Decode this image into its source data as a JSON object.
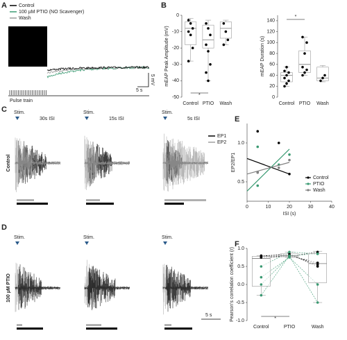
{
  "panel_labels": [
    "A",
    "B",
    "C",
    "D",
    "E",
    "F"
  ],
  "panel_a": {
    "legend": [
      "Control",
      "100 µM PTIO (NO Scavenger)",
      "Wash"
    ],
    "legend_colors": [
      "#000000",
      "#3a9a72",
      "#9a9a9a"
    ],
    "scale_x": "5 s",
    "scale_y": "5 mV",
    "pulse": "Pulse train"
  },
  "traces": {
    "stim": "Stim.",
    "isi": [
      "30s ISI",
      "15s ISI",
      "5s ISI"
    ],
    "legend": [
      "EP1",
      "EP2"
    ],
    "legend_colors": [
      "#000000",
      "#a0a0a0"
    ],
    "row_labels": [
      "Control",
      "100 µM PTIO"
    ],
    "scale": "5 s"
  },
  "chart_data": [
    {
      "type": "box",
      "ylabel": "mEAP Peak Amplitude (mV)",
      "categories": [
        "Control",
        "PTIO",
        "Wash"
      ],
      "ylim": [
        -50,
        0
      ],
      "yticks": [
        0,
        -10,
        -20,
        -30,
        -40,
        -50
      ],
      "point_color": "#000000",
      "boxes": [
        {
          "min": -28,
          "q1": -18,
          "median": -8,
          "q3": -4,
          "max": -2
        },
        {
          "min": -40,
          "q1": -20,
          "median": -15,
          "q3": -6,
          "max": -3
        },
        {
          "min": -18,
          "q1": -14,
          "median": -8,
          "q3": -4,
          "max": -3
        }
      ],
      "points": [
        [
          -3,
          -5,
          -8,
          -10,
          -12,
          -20,
          -28
        ],
        [
          -5,
          -8,
          -12,
          -18,
          -22,
          -30,
          -35,
          -40
        ],
        [
          -5,
          -10,
          -15,
          -18
        ]
      ],
      "significance": {
        "label": "*",
        "between": [
          0,
          1
        ],
        "side": "bottom"
      }
    },
    {
      "type": "box",
      "ylabel": "mEAP Duration (s)",
      "categories": [
        "Control",
        "PTIO",
        "Wash"
      ],
      "ylim": [
        0,
        150
      ],
      "yticks": [
        0,
        20,
        40,
        60,
        80,
        100,
        120,
        140
      ],
      "point_color": "#000000",
      "boxes": [
        {
          "min": 20,
          "q1": 28,
          "median": 40,
          "q3": 45,
          "max": 55
        },
        {
          "min": 40,
          "q1": 45,
          "median": 60,
          "q3": 85,
          "max": 110
        },
        {
          "min": 28,
          "q1": 30,
          "median": 35,
          "q3": 55,
          "max": 58
        }
      ],
      "points": [
        [
          20,
          25,
          30,
          35,
          40,
          45,
          48,
          55
        ],
        [
          40,
          45,
          50,
          55,
          80,
          100,
          110
        ],
        [
          30,
          35,
          40
        ]
      ],
      "significance": {
        "label": "*",
        "between": [
          0,
          1
        ],
        "side": "top"
      }
    },
    {
      "type": "scatter",
      "xlabel": "ISI (s)",
      "ylabel": "EP2/EP1",
      "xlim": [
        0,
        40
      ],
      "xticks": [
        0,
        10,
        20,
        30,
        40
      ],
      "ylim": [
        0.25,
        1.25
      ],
      "yticks": [
        0.5,
        {
          "value": 1,
          "label": "1.0"
        }
      ],
      "legend": "lower right",
      "series": [
        {
          "name": "Control",
          "color": "#000000",
          "x": [
            5,
            5,
            15,
            20
          ],
          "values": [
            1.15,
            0.62,
            1.0,
            0.6
          ],
          "fit": {
            "x": [
              0,
              20
            ],
            "values": [
              0.8,
              0.6
            ]
          }
        },
        {
          "name": "PTIO",
          "color": "#3a9a72",
          "x": [
            5,
            5,
            15,
            20
          ],
          "values": [
            0.95,
            0.45,
            0.72,
            0.85
          ],
          "fit": {
            "x": [
              0,
              20
            ],
            "values": [
              0.38,
              0.92
            ]
          }
        },
        {
          "name": "Wash",
          "color": "#808080",
          "x": [
            5,
            15,
            20
          ],
          "values": [
            0.62,
            0.68,
            0.78
          ],
          "fit": {
            "x": [
              0,
              20
            ],
            "values": [
              0.6,
              0.75
            ]
          }
        }
      ]
    },
    {
      "type": "box",
      "ylabel": "Pearson's correlation coefficient (r)",
      "categories": [
        "Control",
        "PTIO",
        "Wash"
      ],
      "ylim": [
        -1,
        1
      ],
      "yticks": [
        {
          "value": 1,
          "label": "1.0"
        },
        0.5,
        {
          "value": 0,
          "label": "0.0"
        },
        -0.5,
        {
          "value": -1,
          "label": "-1.0"
        }
      ],
      "point_color": "#000000",
      "paired": true,
      "pair_colors": [
        "#000000",
        "#000000",
        "#000000",
        "#000000",
        "#3a9a72",
        "#3a9a72",
        "#3a9a72",
        "#3a9a72"
      ],
      "boxes": [
        {
          "min": -0.3,
          "q1": -0.05,
          "median": 0.72,
          "q3": 0.78,
          "max": 0.8
        },
        {
          "min": 0.75,
          "q1": 0.77,
          "median": 0.8,
          "q3": 0.85,
          "max": 0.9
        },
        {
          "min": -0.5,
          "q1": 0.05,
          "median": 0.58,
          "q3": 0.86,
          "max": 0.92
        }
      ],
      "points": [
        [
          0.75,
          0.75,
          0.78,
          0.8,
          0.5,
          0.2,
          0,
          -0.3
        ],
        [
          0.78,
          0.8,
          0.85,
          0.82,
          0.9,
          0.75,
          0.78,
          0.8
        ],
        [
          0.9,
          0.6,
          0.5,
          0.55,
          0.85,
          0,
          -0.5,
          0.85
        ]
      ],
      "significance": {
        "label": "*",
        "between": [
          0,
          1
        ],
        "side": "bottom"
      }
    }
  ]
}
